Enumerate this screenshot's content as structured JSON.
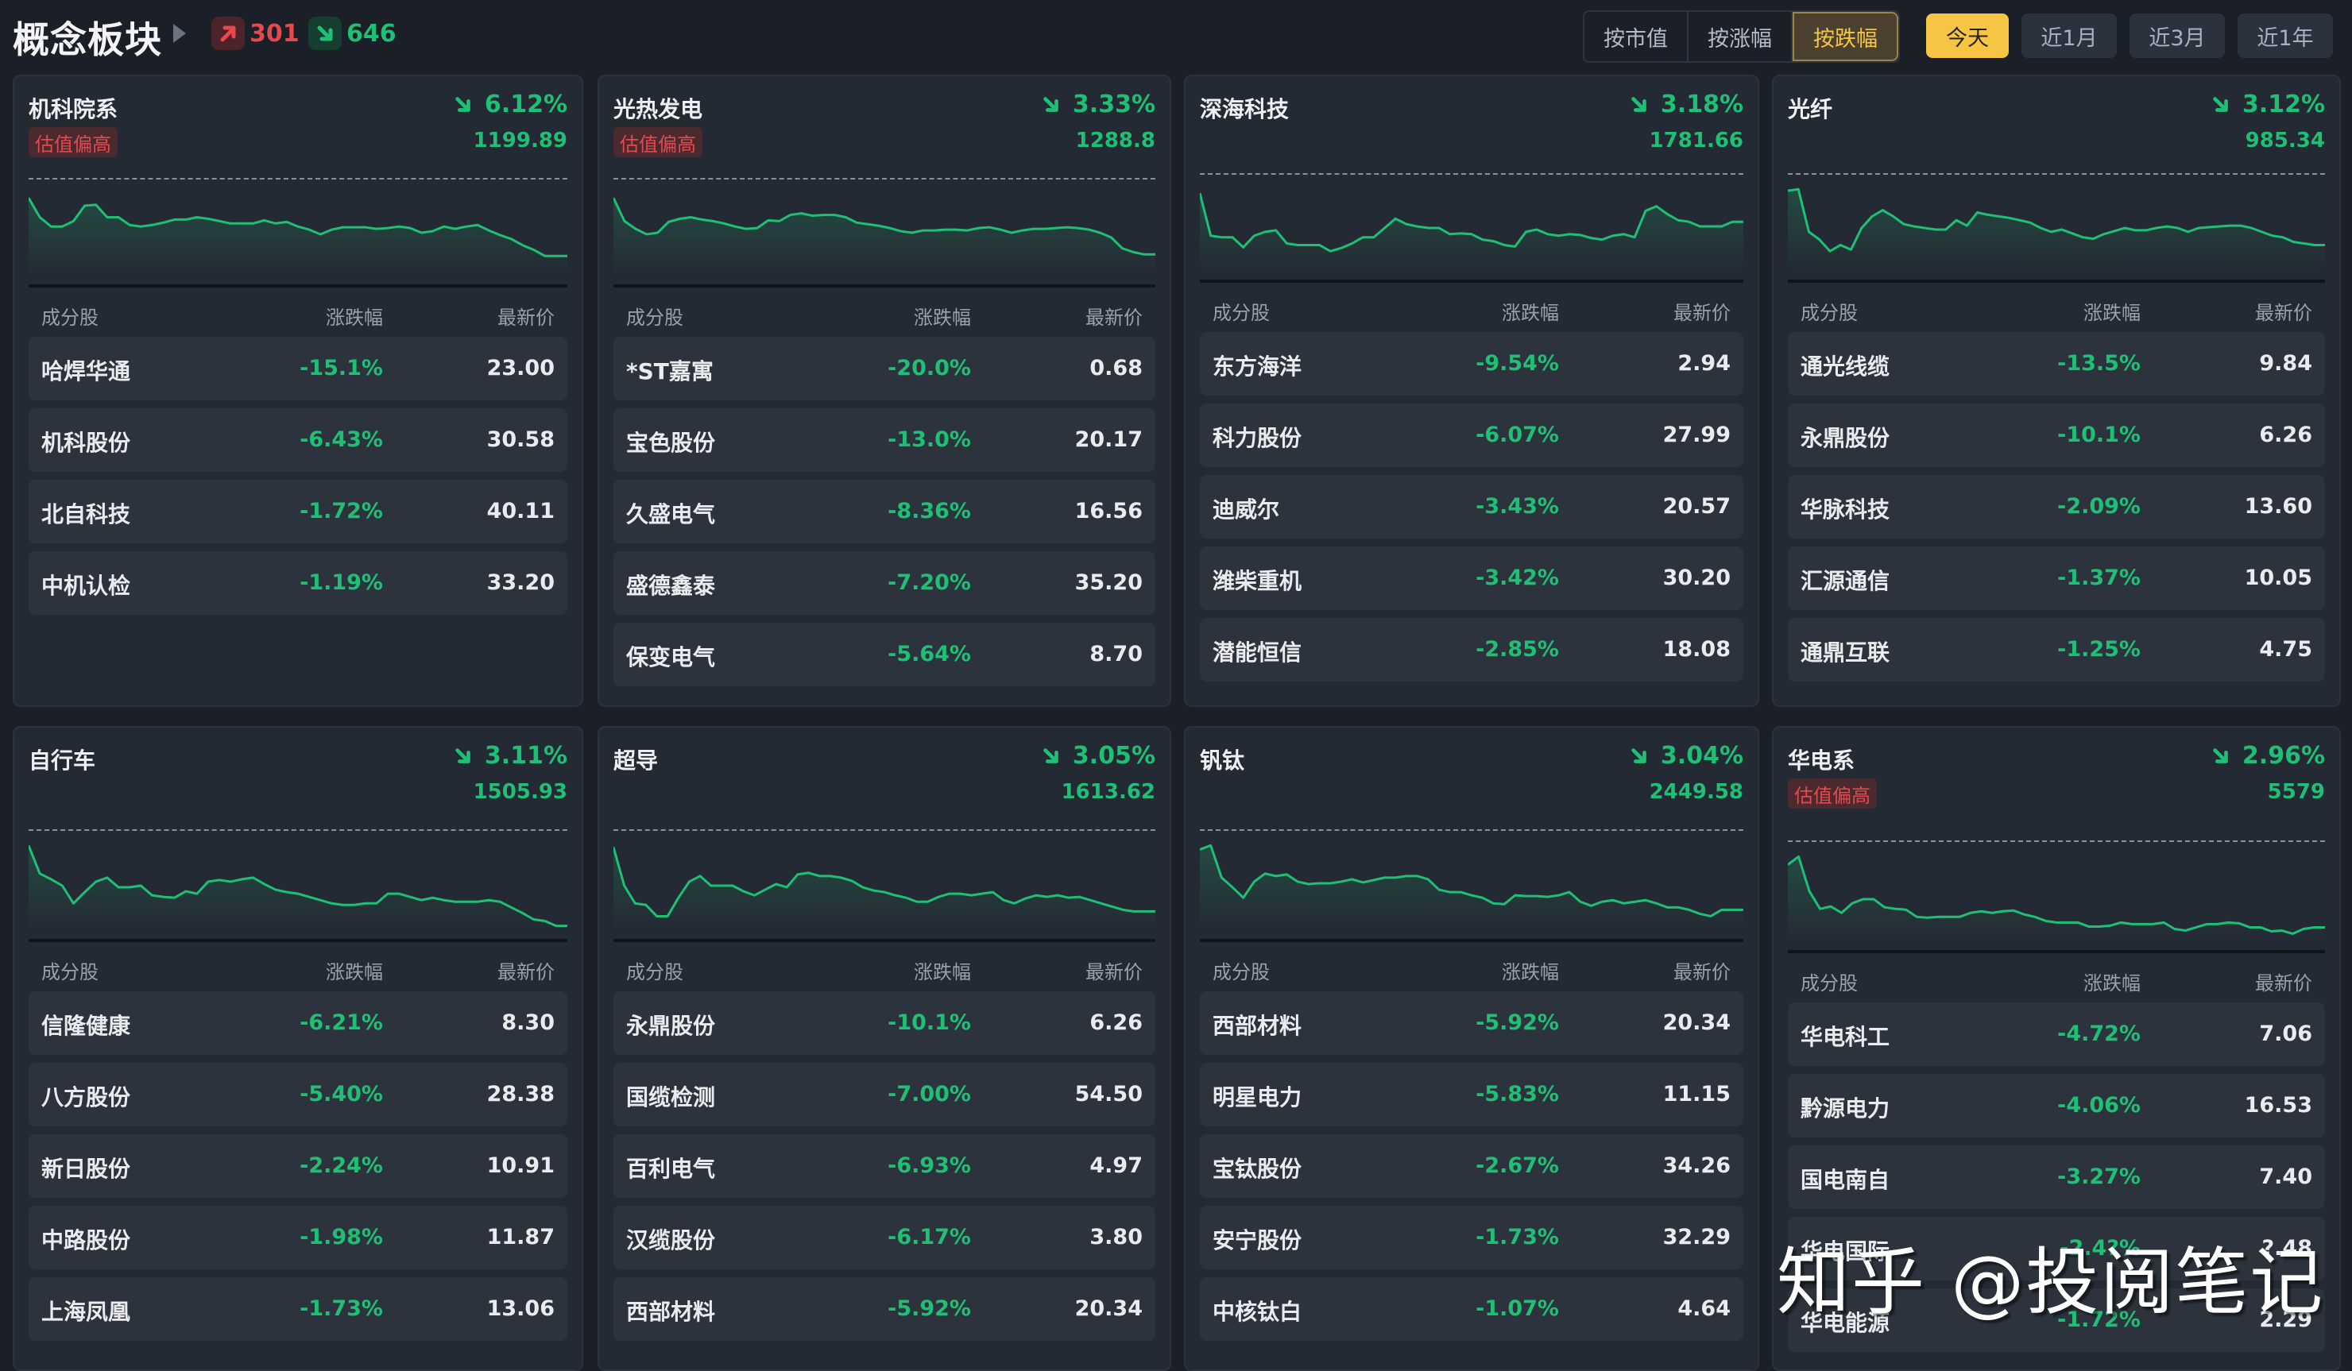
{
  "header": {
    "title": "概念板块",
    "up_count": "301",
    "down_count": "646",
    "sort_tabs": [
      {
        "label": "按市值",
        "active": false
      },
      {
        "label": "按涨幅",
        "active": false
      },
      {
        "label": "按跌幅",
        "active": true
      }
    ],
    "range_tabs": [
      {
        "label": "今天",
        "active": true
      },
      {
        "label": "近1月",
        "active": false
      },
      {
        "label": "近3月",
        "active": false
      },
      {
        "label": "近1年",
        "active": false
      }
    ]
  },
  "table_headers": {
    "name": "成分股",
    "change": "涨跌幅",
    "price": "最新价"
  },
  "colors": {
    "down": "#1fbf75",
    "up": "#e5484d",
    "accent": "#f7c544",
    "card_bg": "#242a34",
    "page_bg": "#1b1f28"
  },
  "cards": [
    {
      "name": "机科院系",
      "badge": "估值偏高",
      "change": "6.12%",
      "value": "1199.89",
      "stocks": [
        [
          "哈焊华通",
          "-15.1%",
          "23.00"
        ],
        [
          "机科股份",
          "-6.43%",
          "30.58"
        ],
        [
          "北自科技",
          "-1.72%",
          "40.11"
        ],
        [
          "中机认检",
          "-1.19%",
          "33.20"
        ]
      ]
    },
    {
      "name": "光热发电",
      "badge": "估值偏高",
      "change": "3.33%",
      "value": "1288.8",
      "stocks": [
        [
          "*ST嘉寓",
          "-20.0%",
          "0.68"
        ],
        [
          "宝色股份",
          "-13.0%",
          "20.17"
        ],
        [
          "久盛电气",
          "-8.36%",
          "16.56"
        ],
        [
          "盛德鑫泰",
          "-7.20%",
          "35.20"
        ],
        [
          "保变电气",
          "-5.64%",
          "8.70"
        ]
      ]
    },
    {
      "name": "深海科技",
      "badge": null,
      "change": "3.18%",
      "value": "1781.66",
      "stocks": [
        [
          "东方海洋",
          "-9.54%",
          "2.94"
        ],
        [
          "科力股份",
          "-6.07%",
          "27.99"
        ],
        [
          "迪威尔",
          "-3.43%",
          "20.57"
        ],
        [
          "潍柴重机",
          "-3.42%",
          "30.20"
        ],
        [
          "潜能恒信",
          "-2.85%",
          "18.08"
        ]
      ]
    },
    {
      "name": "光纤",
      "badge": null,
      "change": "3.12%",
      "value": "985.34",
      "stocks": [
        [
          "通光线缆",
          "-13.5%",
          "9.84"
        ],
        [
          "永鼎股份",
          "-10.1%",
          "6.26"
        ],
        [
          "华脉科技",
          "-2.09%",
          "13.60"
        ],
        [
          "汇源通信",
          "-1.37%",
          "10.05"
        ],
        [
          "通鼎互联",
          "-1.25%",
          "4.75"
        ]
      ]
    },
    {
      "name": "自行车",
      "badge": null,
      "change": "3.11%",
      "value": "1505.93",
      "stocks": [
        [
          "信隆健康",
          "-6.21%",
          "8.30"
        ],
        [
          "八方股份",
          "-5.40%",
          "28.38"
        ],
        [
          "新日股份",
          "-2.24%",
          "10.91"
        ],
        [
          "中路股份",
          "-1.98%",
          "11.87"
        ],
        [
          "上海凤凰",
          "-1.73%",
          "13.06"
        ]
      ]
    },
    {
      "name": "超导",
      "badge": null,
      "change": "3.05%",
      "value": "1613.62",
      "stocks": [
        [
          "永鼎股份",
          "-10.1%",
          "6.26"
        ],
        [
          "国缆检测",
          "-7.00%",
          "54.50"
        ],
        [
          "百利电气",
          "-6.93%",
          "4.97"
        ],
        [
          "汉缆股份",
          "-6.17%",
          "3.80"
        ],
        [
          "西部材料",
          "-5.92%",
          "20.34"
        ]
      ]
    },
    {
      "name": "钒钛",
      "badge": null,
      "change": "3.04%",
      "value": "2449.58",
      "stocks": [
        [
          "西部材料",
          "-5.92%",
          "20.34"
        ],
        [
          "明星电力",
          "-5.83%",
          "11.15"
        ],
        [
          "宝钛股份",
          "-2.67%",
          "34.26"
        ],
        [
          "安宁股份",
          "-1.73%",
          "32.29"
        ],
        [
          "中核钛白",
          "-1.07%",
          "4.64"
        ]
      ]
    },
    {
      "name": "华电系",
      "badge": "估值偏高",
      "change": "2.96%",
      "value": "5579",
      "stocks": [
        [
          "华电科工",
          "-4.72%",
          "7.06"
        ],
        [
          "黔源电力",
          "-4.06%",
          "16.53"
        ],
        [
          "国电南自",
          "-3.27%",
          "7.40"
        ],
        [
          "华电国际",
          "-2.4?%",
          "?.48"
        ],
        [
          "华电能源",
          "-1.72%",
          "2.29"
        ]
      ]
    }
  ],
  "watermark": "知乎 @投阅笔记",
  "chart_data": [
    {
      "type": "line",
      "title": "机科院系",
      "note": "intraday sparkline, normalized 0=top 1=bottom, dashed line = previous close",
      "y": [
        0.05,
        0.3,
        0.42,
        0.42,
        0.35,
        0.15,
        0.14,
        0.3,
        0.3,
        0.4,
        0.42,
        0.4,
        0.37,
        0.33,
        0.33,
        0.3,
        0.32,
        0.35,
        0.38,
        0.38,
        0.38,
        0.34,
        0.38,
        0.36,
        0.42,
        0.46,
        0.52,
        0.46,
        0.43,
        0.43,
        0.43,
        0.45,
        0.44,
        0.42,
        0.44,
        0.5,
        0.48,
        0.42,
        0.45,
        0.42,
        0.4,
        0.47,
        0.53,
        0.58,
        0.66,
        0.72,
        0.8,
        0.8,
        0.8
      ]
    },
    {
      "type": "line",
      "title": "光热发电",
      "y": [
        0.05,
        0.35,
        0.45,
        0.52,
        0.5,
        0.36,
        0.32,
        0.3,
        0.33,
        0.35,
        0.38,
        0.42,
        0.45,
        0.44,
        0.34,
        0.35,
        0.27,
        0.25,
        0.28,
        0.27,
        0.27,
        0.3,
        0.37,
        0.39,
        0.41,
        0.44,
        0.48,
        0.5,
        0.47,
        0.47,
        0.46,
        0.46,
        0.47,
        0.44,
        0.43,
        0.46,
        0.5,
        0.47,
        0.45,
        0.45,
        0.44,
        0.43,
        0.44,
        0.46,
        0.5,
        0.56,
        0.7,
        0.75,
        0.78,
        0.78
      ]
    },
    {
      "type": "line",
      "title": "深海科技",
      "y": [
        0.05,
        0.6,
        0.62,
        0.62,
        0.75,
        0.6,
        0.55,
        0.53,
        0.7,
        0.72,
        0.72,
        0.72,
        0.8,
        0.76,
        0.7,
        0.62,
        0.62,
        0.5,
        0.38,
        0.45,
        0.48,
        0.5,
        0.5,
        0.58,
        0.57,
        0.58,
        0.65,
        0.67,
        0.72,
        0.74,
        0.55,
        0.52,
        0.58,
        0.6,
        0.58,
        0.59,
        0.63,
        0.65,
        0.6,
        0.58,
        0.62,
        0.28,
        0.22,
        0.32,
        0.4,
        0.42,
        0.48,
        0.48,
        0.48,
        0.42,
        0.42
      ]
    },
    {
      "type": "line",
      "title": "光纤",
      "y": [
        0.02,
        0.0,
        0.55,
        0.65,
        0.8,
        0.72,
        0.78,
        0.5,
        0.35,
        0.27,
        0.35,
        0.45,
        0.48,
        0.5,
        0.52,
        0.52,
        0.4,
        0.47,
        0.3,
        0.33,
        0.35,
        0.37,
        0.4,
        0.43,
        0.5,
        0.55,
        0.52,
        0.57,
        0.62,
        0.64,
        0.58,
        0.54,
        0.5,
        0.53,
        0.53,
        0.5,
        0.48,
        0.5,
        0.55,
        0.5,
        0.49,
        0.48,
        0.47,
        0.47,
        0.5,
        0.55,
        0.6,
        0.62,
        0.68,
        0.7,
        0.72,
        0.72
      ]
    },
    {
      "type": "line",
      "title": "自行车",
      "y": [
        0.0,
        0.35,
        0.42,
        0.5,
        0.72,
        0.58,
        0.45,
        0.4,
        0.52,
        0.52,
        0.5,
        0.62,
        0.64,
        0.65,
        0.57,
        0.6,
        0.45,
        0.43,
        0.45,
        0.42,
        0.4,
        0.48,
        0.55,
        0.58,
        0.6,
        0.64,
        0.68,
        0.72,
        0.74,
        0.74,
        0.72,
        0.72,
        0.6,
        0.6,
        0.64,
        0.68,
        0.65,
        0.68,
        0.7,
        0.7,
        0.7,
        0.68,
        0.7,
        0.77,
        0.84,
        0.92,
        0.94,
        1.0,
        1.0
      ]
    },
    {
      "type": "line",
      "title": "超导",
      "y": [
        0.02,
        0.5,
        0.72,
        0.74,
        0.88,
        0.88,
        0.65,
        0.45,
        0.38,
        0.5,
        0.5,
        0.5,
        0.57,
        0.62,
        0.55,
        0.48,
        0.52,
        0.36,
        0.34,
        0.38,
        0.38,
        0.4,
        0.44,
        0.52,
        0.56,
        0.58,
        0.62,
        0.65,
        0.7,
        0.7,
        0.64,
        0.6,
        0.6,
        0.62,
        0.6,
        0.58,
        0.68,
        0.72,
        0.66,
        0.62,
        0.64,
        0.62,
        0.65,
        0.64,
        0.68,
        0.72,
        0.76,
        0.8,
        0.82,
        0.82,
        0.82
      ]
    },
    {
      "type": "line",
      "title": "钒钛",
      "y": [
        0.05,
        0.0,
        0.4,
        0.52,
        0.65,
        0.45,
        0.35,
        0.38,
        0.36,
        0.45,
        0.48,
        0.47,
        0.47,
        0.45,
        0.42,
        0.46,
        0.43,
        0.4,
        0.4,
        0.38,
        0.38,
        0.42,
        0.55,
        0.58,
        0.58,
        0.62,
        0.65,
        0.72,
        0.73,
        0.62,
        0.63,
        0.63,
        0.64,
        0.62,
        0.58,
        0.7,
        0.75,
        0.7,
        0.68,
        0.72,
        0.7,
        0.68,
        0.72,
        0.77,
        0.77,
        0.8,
        0.85,
        0.88,
        0.8,
        0.8,
        0.8
      ]
    },
    {
      "type": "line",
      "title": "华电系",
      "y": [
        0.1,
        0.0,
        0.43,
        0.65,
        0.62,
        0.7,
        0.58,
        0.53,
        0.53,
        0.63,
        0.65,
        0.66,
        0.75,
        0.76,
        0.75,
        0.75,
        0.75,
        0.7,
        0.68,
        0.7,
        0.68,
        0.67,
        0.72,
        0.75,
        0.8,
        0.82,
        0.82,
        0.82,
        0.87,
        0.87,
        0.86,
        0.82,
        0.84,
        0.84,
        0.84,
        0.82,
        0.9,
        0.92,
        0.88,
        0.84,
        0.84,
        0.82,
        0.83,
        0.88,
        0.88,
        0.93,
        0.92,
        0.96,
        0.9,
        0.88,
        0.88
      ]
    }
  ]
}
